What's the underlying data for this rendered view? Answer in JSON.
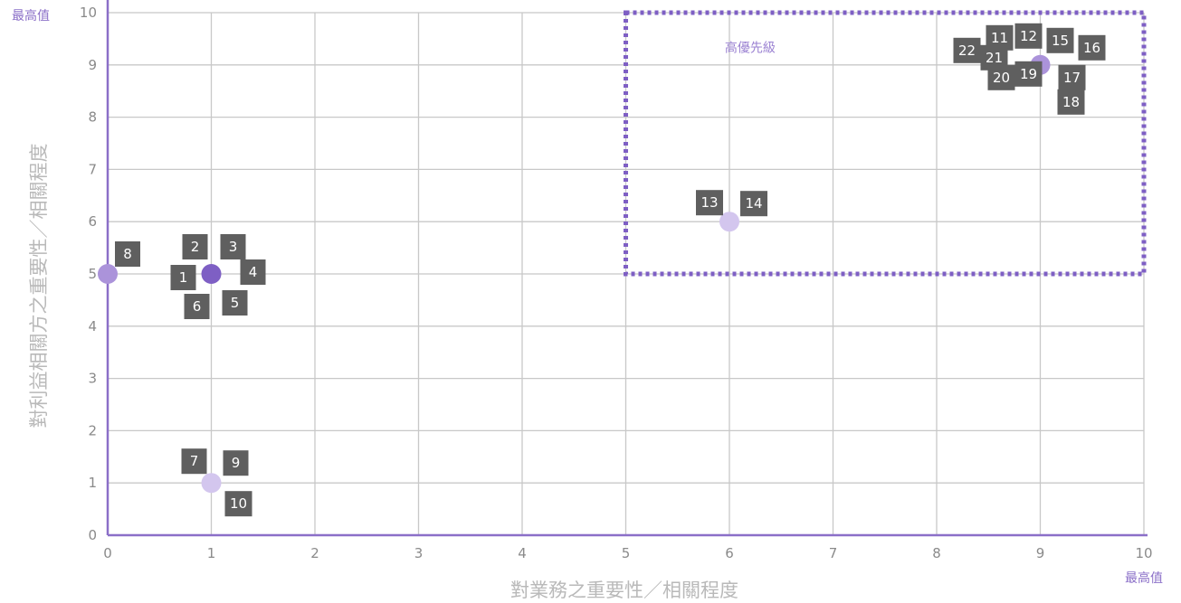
{
  "chart_data": {
    "type": "scatter",
    "xlabel": "對業務之重要性／相關程度",
    "ylabel": "對利益相關方之重要性／相關程度",
    "xlim": [
      0,
      10
    ],
    "ylim": [
      0,
      10
    ],
    "x_ticks": [
      "0",
      "1",
      "2",
      "3",
      "4",
      "5",
      "6",
      "7",
      "8",
      "9",
      "10"
    ],
    "y_ticks": [
      "0",
      "1",
      "2",
      "3",
      "4",
      "5",
      "6",
      "7",
      "8",
      "9",
      "10"
    ],
    "x_max_label": "最高值",
    "y_max_label": "最高值",
    "grid": true,
    "highlight_region": {
      "label": "高優先級",
      "x": [
        5,
        10
      ],
      "y": [
        5,
        10
      ]
    },
    "colors": {
      "dark": "#7e5fc4",
      "medium": "#ab93da",
      "light": "#d3c6ee",
      "label_box": "#5f5f5f",
      "axis": "#8b6fc8",
      "grid": "#c8c8c8"
    },
    "points": [
      {
        "x": 1,
        "y": 5,
        "color": "dark",
        "labels": [
          "1",
          "2",
          "3",
          "4",
          "5",
          "6"
        ]
      },
      {
        "x": 1,
        "y": 1,
        "color": "light",
        "labels": [
          "7",
          "9",
          "10"
        ]
      },
      {
        "x": 0,
        "y": 5,
        "color": "medium",
        "labels": [
          "8"
        ]
      },
      {
        "x": 6,
        "y": 6,
        "color": "light",
        "labels": [
          "13",
          "14"
        ]
      },
      {
        "x": 9,
        "y": 9,
        "color": "medium",
        "labels": [
          "11",
          "12",
          "15",
          "16",
          "17",
          "18",
          "19",
          "20",
          "21",
          "22"
        ]
      }
    ]
  }
}
